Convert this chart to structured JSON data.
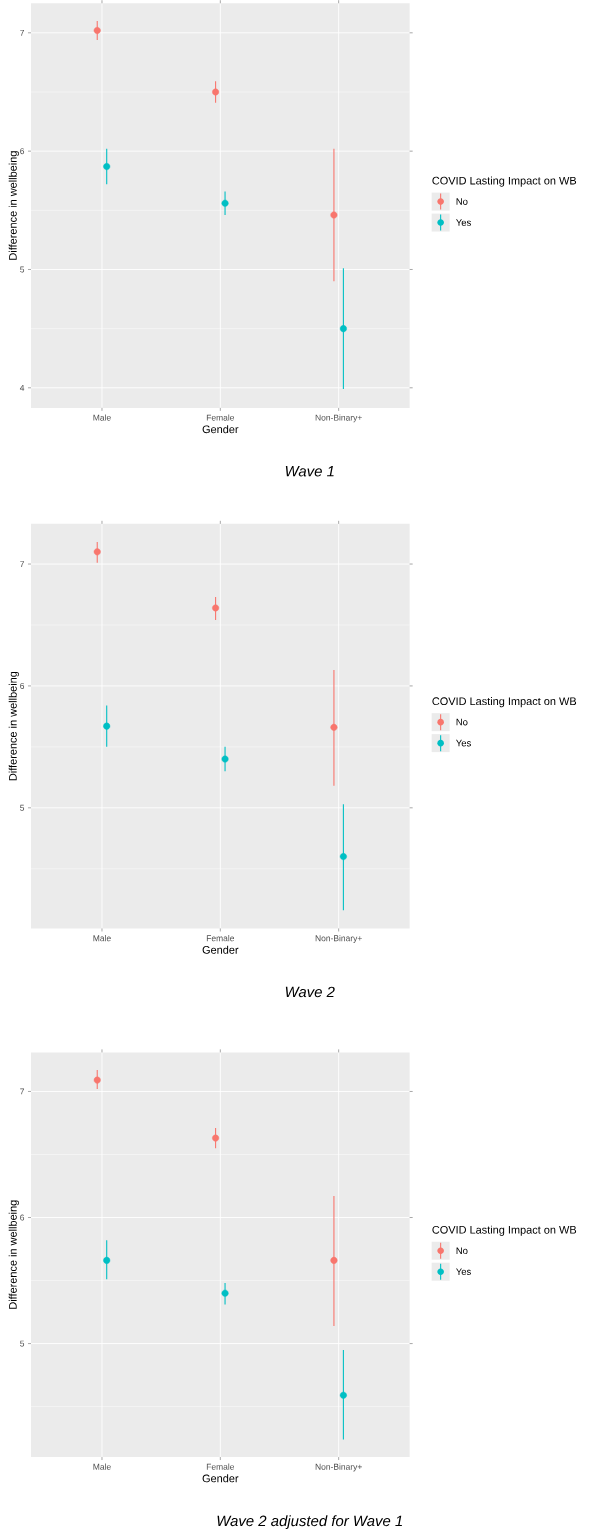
{
  "chart_data": [
    {
      "type": "scatter",
      "categories": [
        "Male",
        "Female",
        "Non-Binary+"
      ],
      "xlabel": "Gender",
      "ylabel": "Difference in wellbeing",
      "legend_title": "COVID Lasting Impact on WB",
      "legend": "right",
      "grid": true,
      "marker": "circle",
      "ylim": [
        3.83,
        7.25
      ],
      "yticks": [
        4,
        5,
        6,
        7
      ],
      "annotations": [
        "Wave 1"
      ],
      "series": [
        {
          "name": "No",
          "color": "#f8766d",
          "values": [
            7.02,
            6.5,
            5.46
          ],
          "errors": [
            [
              6.94,
              7.1
            ],
            [
              6.41,
              6.59
            ],
            [
              4.9,
              6.02
            ]
          ]
        },
        {
          "name": "Yes",
          "color": "#00bfc4",
          "values": [
            5.87,
            5.56,
            4.5
          ],
          "errors": [
            [
              5.72,
              6.02
            ],
            [
              5.46,
              5.66
            ],
            [
              3.99,
              5.01
            ]
          ]
        }
      ]
    },
    {
      "type": "scatter",
      "categories": [
        "Male",
        "Female",
        "Non-Binary+"
      ],
      "xlabel": "Gender",
      "ylabel": "Difference in wellbeing",
      "legend_title": "COVID Lasting Impact on WB",
      "legend": "right",
      "grid": true,
      "marker": "circle",
      "ylim": [
        4.01,
        7.33
      ],
      "yticks": [
        5,
        6,
        7
      ],
      "annotations": [
        "Wave 2"
      ],
      "series": [
        {
          "name": "No",
          "color": "#f8766d",
          "values": [
            7.1,
            6.64,
            5.66
          ],
          "errors": [
            [
              7.01,
              7.18
            ],
            [
              6.54,
              6.73
            ],
            [
              5.18,
              6.13
            ]
          ]
        },
        {
          "name": "Yes",
          "color": "#00bfc4",
          "values": [
            5.67,
            5.4,
            4.6
          ],
          "errors": [
            [
              5.5,
              5.84
            ],
            [
              5.3,
              5.5
            ],
            [
              4.16,
              5.03
            ]
          ]
        }
      ]
    },
    {
      "type": "scatter",
      "categories": [
        "Male",
        "Female",
        "Non-Binary+"
      ],
      "xlabel": "Gender",
      "ylabel": "Difference in wellbeing",
      "legend_title": "COVID Lasting Impact on WB",
      "legend": "right",
      "grid": true,
      "marker": "circle",
      "ylim": [
        4.1,
        7.31
      ],
      "yticks": [
        5,
        6,
        7
      ],
      "annotations": [
        "Wave 2 adjusted for Wave 1"
      ],
      "series": [
        {
          "name": "No",
          "color": "#f8766d",
          "values": [
            7.09,
            6.63,
            5.66
          ],
          "errors": [
            [
              7.02,
              7.17
            ],
            [
              6.55,
              6.71
            ],
            [
              5.14,
              6.17
            ]
          ]
        },
        {
          "name": "Yes",
          "color": "#00bfc4",
          "values": [
            5.66,
            5.4,
            4.59
          ],
          "errors": [
            [
              5.51,
              5.82
            ],
            [
              5.31,
              5.48
            ],
            [
              4.24,
              4.95
            ]
          ]
        }
      ]
    }
  ]
}
